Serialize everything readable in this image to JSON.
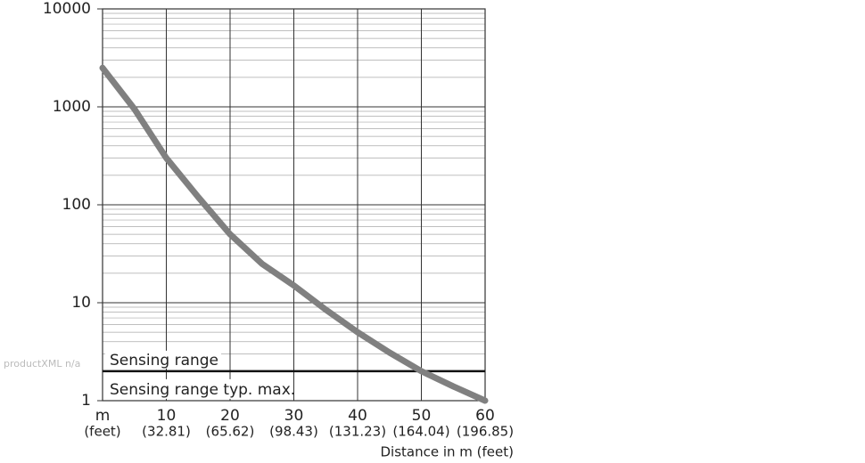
{
  "chart_data": {
    "type": "line",
    "x": [
      0,
      5,
      10,
      15,
      20,
      25,
      30,
      35,
      40,
      45,
      50,
      55,
      60
    ],
    "series": [
      {
        "color": "#808080",
        "values": [
          2500,
          950,
          300,
          120,
          50,
          25,
          15,
          8.5,
          5,
          3.1,
          2,
          1.4,
          1
        ]
      }
    ],
    "xlim": [
      0,
      60
    ],
    "xticks": [
      {
        "value": 0,
        "label": "m"
      },
      10,
      20,
      30,
      40,
      50,
      60
    ],
    "xtick_sublabels": [
      "(feet)",
      "(32.81)",
      "(65.62)",
      "(98.43)",
      "(131.23)",
      "(164.04)",
      "(196.85)"
    ],
    "xlabel": "Distance in m (feet)",
    "ylim": [
      1,
      10000
    ],
    "yticks": [
      1,
      10,
      100,
      1000,
      10000
    ],
    "ylog": true,
    "grid": true,
    "threshold": {
      "value": 2,
      "label_above": "Sensing range",
      "label_below": "Sensing range typ. max."
    },
    "watermark": "productXML n/a"
  }
}
